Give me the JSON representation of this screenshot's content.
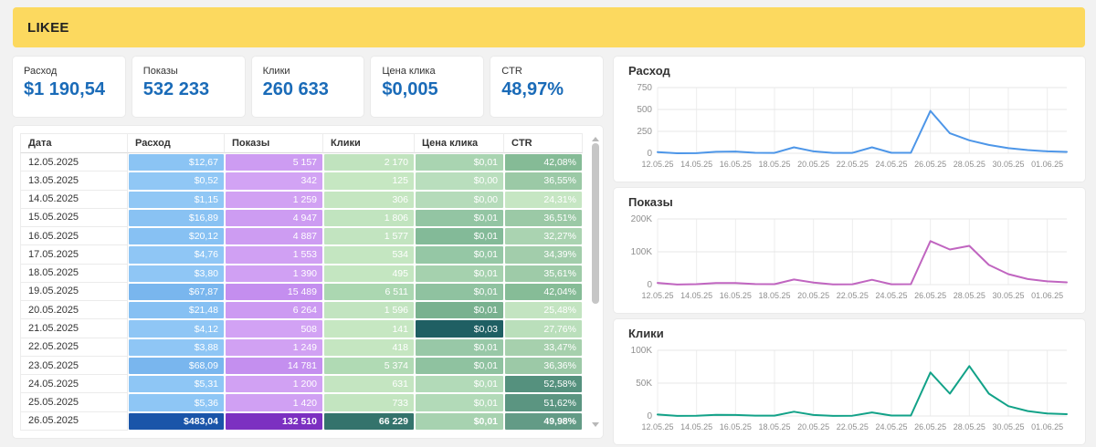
{
  "banner": {
    "title": "LIKEE",
    "bg_color": "#FCD95F"
  },
  "kpis": [
    {
      "label": "Расход",
      "value": "$1 190,54"
    },
    {
      "label": "Показы",
      "value": "532 233"
    },
    {
      "label": "Клики",
      "value": "260 633"
    },
    {
      "label": "Цена клика",
      "value": "$0,005"
    },
    {
      "label": "CTR",
      "value": "48,97%"
    }
  ],
  "kpi_value_color": "#1A6BB8",
  "table": {
    "headers": [
      "Дата",
      "Расход",
      "Показы",
      "Клики",
      "Цена клика",
      "CTR"
    ],
    "rows": [
      {
        "date": "12.05.2025",
        "values": [
          "$12,67",
          "5 157",
          "2 170",
          "$0,01",
          "42,08%"
        ],
        "colors": [
          "#8BC4F4",
          "#CD9CF2",
          "#C0E3BE",
          "#A9D4B1",
          "#85BB96"
        ],
        "bold": false
      },
      {
        "date": "13.05.2025",
        "values": [
          "$0,52",
          "342",
          "125",
          "$0,00",
          "36,55%"
        ],
        "colors": [
          "#90C7F5",
          "#D2A3F4",
          "#C6E7C2",
          "#B9DEBD",
          "#9BC9A6"
        ],
        "bold": false
      },
      {
        "date": "14.05.2025",
        "values": [
          "$1,15",
          "1 259",
          "306",
          "$0,00",
          "24,31%"
        ],
        "colors": [
          "#90C7F5",
          "#D1A1F3",
          "#C5E6C1",
          "#B5DBBA",
          "#C6E6C3"
        ],
        "bold": false
      },
      {
        "date": "15.05.2025",
        "values": [
          "$16,89",
          "4 947",
          "1 806",
          "$0,01",
          "36,51%"
        ],
        "colors": [
          "#89C2F3",
          "#CD9CF2",
          "#C1E4BF",
          "#93C5A3",
          "#9BC9A6"
        ],
        "bold": false
      },
      {
        "date": "16.05.2025",
        "values": [
          "$20,12",
          "4 887",
          "1 577",
          "$0,01",
          "32,27%"
        ],
        "colors": [
          "#87C1F3",
          "#CD9CF2",
          "#C2E4C0",
          "#83BA98",
          "#AAD3B1"
        ],
        "bold": false
      },
      {
        "date": "17.05.2025",
        "values": [
          "$4,76",
          "1 553",
          "534",
          "$0,01",
          "34,39%"
        ],
        "colors": [
          "#8FC6F5",
          "#D0A0F3",
          "#C4E6C1",
          "#95C7A5",
          "#A2CDAB"
        ],
        "bold": false
      },
      {
        "date": "18.05.2025",
        "values": [
          "$3,80",
          "1 390",
          "495",
          "$0,01",
          "35,61%"
        ],
        "colors": [
          "#8FC6F5",
          "#D0A0F3",
          "#C4E6C1",
          "#A5D1AE",
          "#9ECBA8"
        ],
        "bold": false
      },
      {
        "date": "19.05.2025",
        "values": [
          "$67,87",
          "15 489",
          "6 511",
          "$0,01",
          "42,04%"
        ],
        "colors": [
          "#79B6EE",
          "#C48EEF",
          "#ABD7B1",
          "#8FC2A0",
          "#86BC97"
        ],
        "bold": false
      },
      {
        "date": "20.05.2025",
        "values": [
          "$21,48",
          "6 264",
          "1 596",
          "$0,01",
          "25,48%"
        ],
        "colors": [
          "#86C0F3",
          "#CC9AF2",
          "#C2E4C0",
          "#79B18F",
          "#C3E4C1"
        ],
        "bold": false
      },
      {
        "date": "21.05.2025",
        "values": [
          "$4,12",
          "508",
          "141",
          "$0,03",
          "27,76%"
        ],
        "colors": [
          "#8FC6F5",
          "#D2A2F4",
          "#C6E7C2",
          "#1F5F63",
          "#BADFBB"
        ],
        "bold": false
      },
      {
        "date": "22.05.2025",
        "values": [
          "$3,88",
          "1 249",
          "418",
          "$0,01",
          "33,47%"
        ],
        "colors": [
          "#8FC6F5",
          "#D1A1F3",
          "#C5E6C1",
          "#98C8A7",
          "#A6D0AD"
        ],
        "bold": false
      },
      {
        "date": "23.05.2025",
        "values": [
          "$68,09",
          "14 781",
          "5 374",
          "$0,01",
          "36,36%"
        ],
        "colors": [
          "#79B6EE",
          "#C48FEF",
          "#B0DAB4",
          "#8FC2A0",
          "#9CC9A7"
        ],
        "bold": false
      },
      {
        "date": "24.05.2025",
        "values": [
          "$5,31",
          "1 200",
          "631",
          "$0,01",
          "52,58%"
        ],
        "colors": [
          "#8EC6F5",
          "#D1A1F3",
          "#C4E5C1",
          "#B2DAB8",
          "#55917E"
        ],
        "bold": false
      },
      {
        "date": "25.05.2025",
        "values": [
          "$5,36",
          "1 420",
          "733",
          "$0,01",
          "51,62%"
        ],
        "colors": [
          "#8EC6F5",
          "#D0A0F3",
          "#C3E5C0",
          "#B2DAB8",
          "#5B9581"
        ],
        "bold": false
      },
      {
        "date": "26.05.2025",
        "values": [
          "$483,04",
          "132 510",
          "66 229",
          "$0,01",
          "49,98%"
        ],
        "colors": [
          "#1A55A9",
          "#7C30C1",
          "#34736C",
          "#A7D2B0",
          "#639B86"
        ],
        "bold": true
      }
    ]
  },
  "chart_data": [
    {
      "type": "line",
      "title": "Расход",
      "color": "#4D96E8",
      "ylim": [
        0,
        750
      ],
      "yticks": [
        {
          "v": 0,
          "l": "0"
        },
        {
          "v": 250,
          "l": "250"
        },
        {
          "v": 500,
          "l": "500"
        },
        {
          "v": 750,
          "l": "750"
        }
      ],
      "x": [
        "12.05.25",
        "13.05.25",
        "14.05.25",
        "15.05.25",
        "16.05.25",
        "17.05.25",
        "18.05.25",
        "19.05.25",
        "20.05.25",
        "21.05.25",
        "22.05.25",
        "23.05.25",
        "24.05.25",
        "25.05.25",
        "26.05.25",
        "27.05.25",
        "28.05.25",
        "29.05.25",
        "30.05.25",
        "31.05.25",
        "01.06.25",
        "02.06.25"
      ],
      "values": [
        12.67,
        0.52,
        1.15,
        16.89,
        20.12,
        4.76,
        3.8,
        67.87,
        21.48,
        4.12,
        3.88,
        68.09,
        5.31,
        5.36,
        483.04,
        228,
        148,
        95,
        58,
        36,
        22,
        16
      ],
      "xtick_step": 2,
      "grid": true,
      "legend": false
    },
    {
      "type": "line",
      "title": "Показы",
      "color": "#C065C0",
      "ylim": [
        0,
        200000
      ],
      "yticks": [
        {
          "v": 0,
          "l": "0"
        },
        {
          "v": 100000,
          "l": "100K"
        },
        {
          "v": 200000,
          "l": "200K"
        }
      ],
      "x": [
        "12.05.25",
        "13.05.25",
        "14.05.25",
        "15.05.25",
        "16.05.25",
        "17.05.25",
        "18.05.25",
        "19.05.25",
        "20.05.25",
        "21.05.25",
        "22.05.25",
        "23.05.25",
        "24.05.25",
        "25.05.25",
        "26.05.25",
        "27.05.25",
        "28.05.25",
        "29.05.25",
        "30.05.25",
        "31.05.25",
        "01.06.25",
        "02.06.25"
      ],
      "values": [
        5157,
        342,
        1259,
        4947,
        4887,
        1553,
        1390,
        15489,
        6264,
        508,
        1249,
        14781,
        1200,
        1420,
        132510,
        107000,
        118000,
        60000,
        32000,
        17000,
        10000,
        7000
      ],
      "xtick_step": 2,
      "grid": true,
      "legend": false
    },
    {
      "type": "line",
      "title": "Клики",
      "color": "#12A288",
      "ylim": [
        0,
        100000
      ],
      "yticks": [
        {
          "v": 0,
          "l": "0"
        },
        {
          "v": 50000,
          "l": "50K"
        },
        {
          "v": 100000,
          "l": "100K"
        }
      ],
      "x": [
        "12.05.25",
        "13.05.25",
        "14.05.25",
        "15.05.25",
        "16.05.25",
        "17.05.25",
        "18.05.25",
        "19.05.25",
        "20.05.25",
        "21.05.25",
        "22.05.25",
        "23.05.25",
        "24.05.25",
        "25.05.25",
        "26.05.25",
        "27.05.25",
        "28.05.25",
        "29.05.25",
        "30.05.25",
        "31.05.25",
        "01.06.25",
        "02.06.25"
      ],
      "values": [
        2170,
        125,
        306,
        1806,
        1577,
        534,
        495,
        6511,
        1596,
        141,
        418,
        5374,
        631,
        733,
        66229,
        34000,
        76000,
        34000,
        15000,
        7500,
        3800,
        2800
      ],
      "xtick_step": 2,
      "grid": true,
      "legend": false
    }
  ]
}
